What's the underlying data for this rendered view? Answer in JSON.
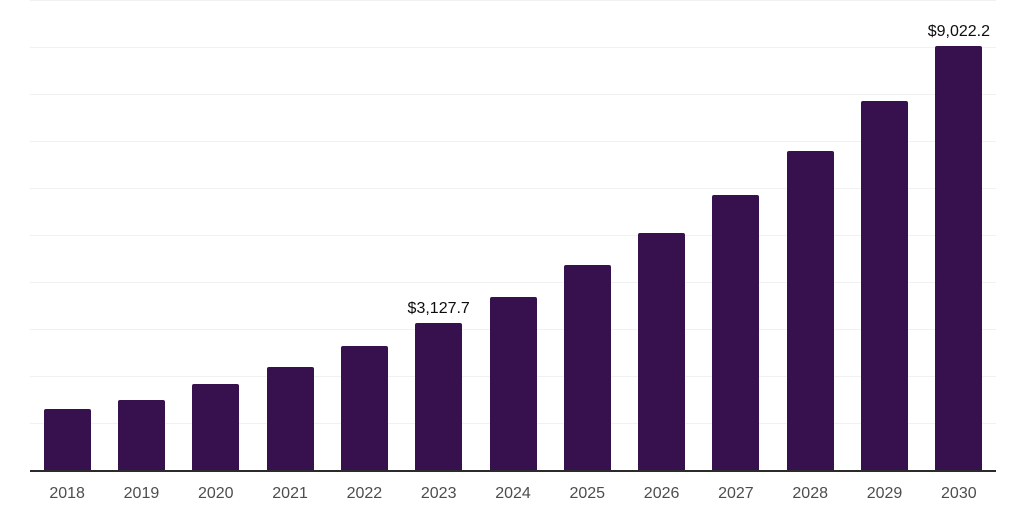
{
  "chart_data": {
    "type": "bar",
    "categories": [
      "2018",
      "2019",
      "2020",
      "2021",
      "2022",
      "2023",
      "2024",
      "2025",
      "2026",
      "2027",
      "2028",
      "2029",
      "2030"
    ],
    "values": [
      1300,
      1500,
      1820,
      2190,
      2640,
      3127.7,
      3680,
      4360,
      5040,
      5850,
      6790,
      7850,
      9022.2
    ],
    "data_labels": [
      {
        "category_index": 5,
        "category": "2023",
        "value": 3127.7,
        "text": "$3,127.7"
      },
      {
        "category_index": 12,
        "category": "2030",
        "value": 9022.2,
        "text": "$9,022.2"
      }
    ],
    "ylim": [
      0,
      10000
    ],
    "gridline_interval": 1000,
    "grid": true,
    "legend": false,
    "y_axis_tick_labels_visible": false,
    "colors": {
      "bar": "#36114E",
      "gridline": "#f2f0f3",
      "axis_line": "#2b2b2b",
      "tick_label": "#4d4d4d",
      "data_label": "#0d0d0d",
      "background": "#ffffff"
    }
  }
}
